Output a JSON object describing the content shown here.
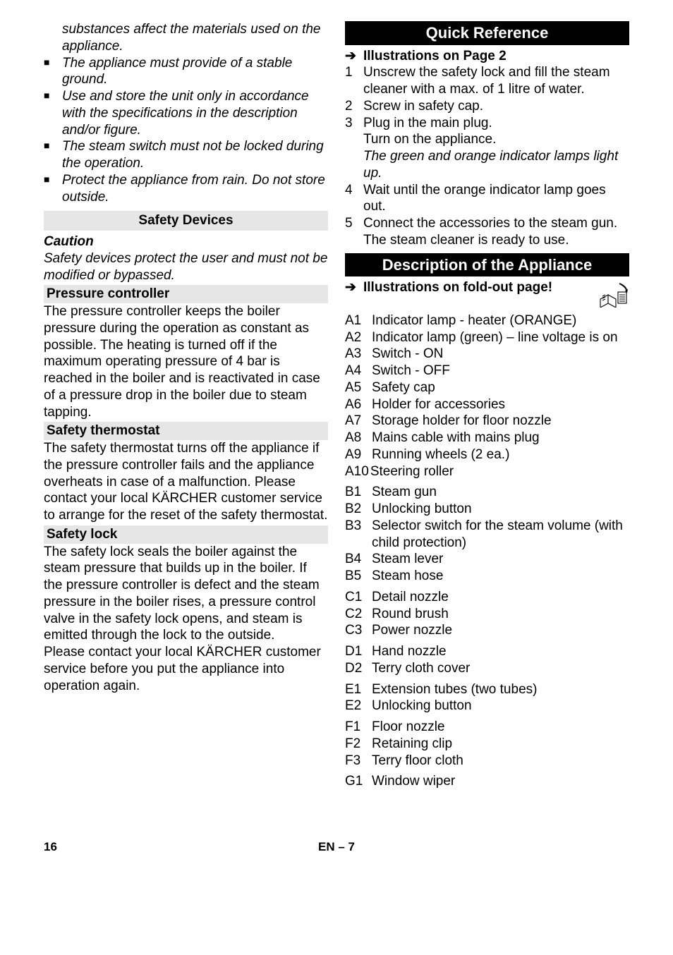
{
  "left": {
    "intro_continuation": "substances affect the materials used on the appliance.",
    "bullets": [
      "The appliance must provide of a stable ground.",
      "Use and store the unit only in accordance with the specifications in the description and/or figure.",
      "The steam switch must not be locked during the operation.",
      "Protect the appliance from rain. Do not store outside."
    ],
    "safety_devices_heading": "Safety Devices",
    "caution_label": "Caution",
    "caution_text": "Safety devices protect the user and must not be modified or bypassed.",
    "pressure_heading": "Pressure controller",
    "pressure_text": "The pressure controller keeps the boiler pressure during the operation as constant as possible. The heating is turned off if the maximum operating pressure of 4 bar is reached in the boiler and is reactivated in case of a pressure drop in the boiler due to steam tapping.",
    "thermo_heading": "Safety thermostat",
    "thermo_text": "The safety thermostat turns off the appliance if the pressure controller fails and the appliance overheats in case of a malfunction. Please contact your local KÄRCHER customer service to arrange for the reset of the safety thermostat.",
    "lock_heading": "Safety lock",
    "lock_text1": "The safety lock seals the boiler against the steam pressure that builds up in the boiler. If the pressure controller is defect and the steam pressure in the boiler rises, a pressure control valve in the safety lock opens, and steam is emitted through the lock to the outside.",
    "lock_text2": "Please contact your local KÄRCHER customer service before you put the appliance into operation again."
  },
  "right": {
    "quick_ref_heading": "Quick Reference",
    "illus_p2": "Illustrations on Page 2",
    "steps": [
      {
        "n": "1",
        "text": "Unscrew the safety lock and fill the steam cleaner with a max. of 1 litre of water."
      },
      {
        "n": "2",
        "text": "Screw in safety cap."
      },
      {
        "n": "3",
        "text": "Plug in the main plug.",
        "extra1": "Turn on the appliance.",
        "extra2_italic": "The green and orange indicator lamps light up."
      },
      {
        "n": "4",
        "text": "Wait until the orange indicator lamp goes out."
      },
      {
        "n": "5",
        "text": "Connect the accessories to the steam gun.",
        "extra1": "The steam cleaner is ready to use."
      }
    ],
    "desc_heading": "Description of the Appliance",
    "illus_foldout": "Illustrations on fold-out page!",
    "items": [
      {
        "c": "A1",
        "t": "Indicator lamp - heater (ORANGE)"
      },
      {
        "c": "A2",
        "t": "Indicator lamp (green) – line voltage is on"
      },
      {
        "c": "A3",
        "t": "Switch - ON"
      },
      {
        "c": "A4",
        "t": "Switch - OFF"
      },
      {
        "c": "A5",
        "t": "Safety cap"
      },
      {
        "c": "A6",
        "t": "Holder for accessories"
      },
      {
        "c": "A7",
        "t": "Storage holder for floor nozzle"
      },
      {
        "c": "A8",
        "t": "Mains cable with mains plug"
      },
      {
        "c": "A9",
        "t": "Running wheels (2 ea.)"
      },
      {
        "c": "A10",
        "t": "Steering roller",
        "tight": true
      },
      {
        "c": "B1",
        "t": "Steam gun",
        "gap": true
      },
      {
        "c": "B2",
        "t": "Unlocking button"
      },
      {
        "c": "B3",
        "t": "Selector switch for the steam volume (with child protection)"
      },
      {
        "c": "B4",
        "t": "Steam lever"
      },
      {
        "c": "B5",
        "t": "Steam hose"
      },
      {
        "c": "C1",
        "t": "Detail nozzle",
        "gap": true
      },
      {
        "c": "C2",
        "t": "Round brush"
      },
      {
        "c": "C3",
        "t": "Power nozzle"
      },
      {
        "c": "D1",
        "t": "Hand nozzle",
        "gap": true
      },
      {
        "c": "D2",
        "t": "Terry cloth cover"
      },
      {
        "c": "E1",
        "t": "Extension tubes (two tubes)",
        "gap": true
      },
      {
        "c": "E2",
        "t": "Unlocking button"
      },
      {
        "c": "F1",
        "t": "Floor nozzle",
        "gap": true
      },
      {
        "c": "F2",
        "t": "Retaining clip"
      },
      {
        "c": "F3",
        "t": "Terry floor cloth"
      },
      {
        "c": "G1",
        "t": "Window wiper",
        "gap": true
      }
    ]
  },
  "footer": {
    "page": "16",
    "lang": "EN – 7"
  }
}
